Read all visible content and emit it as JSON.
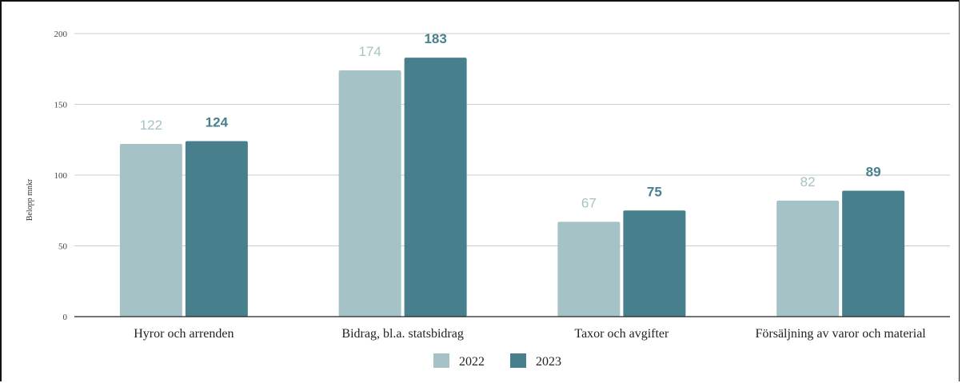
{
  "chart_data": {
    "type": "bar",
    "categories": [
      "Hyror och arrenden",
      "Bidrag, bl.a. statsbidrag",
      "Taxor och avgifter",
      "Försäljning av varor och material"
    ],
    "series": [
      {
        "name": "2022",
        "values": [
          122,
          174,
          67,
          82
        ],
        "color": "#a5c3c7"
      },
      {
        "name": "2023",
        "values": [
          124,
          183,
          75,
          89
        ],
        "color": "#47808c"
      }
    ],
    "ylabel": "Belopp mnkr",
    "xlabel": "",
    "ylim": [
      0,
      200
    ],
    "yticks": [
      0,
      50,
      100,
      150,
      200
    ],
    "grid": true,
    "legend": "bottom-center",
    "data_labels": {
      "2022": [
        "122",
        "174",
        "67",
        "82"
      ],
      "2023": [
        "124",
        "183",
        "75",
        "89"
      ]
    }
  }
}
